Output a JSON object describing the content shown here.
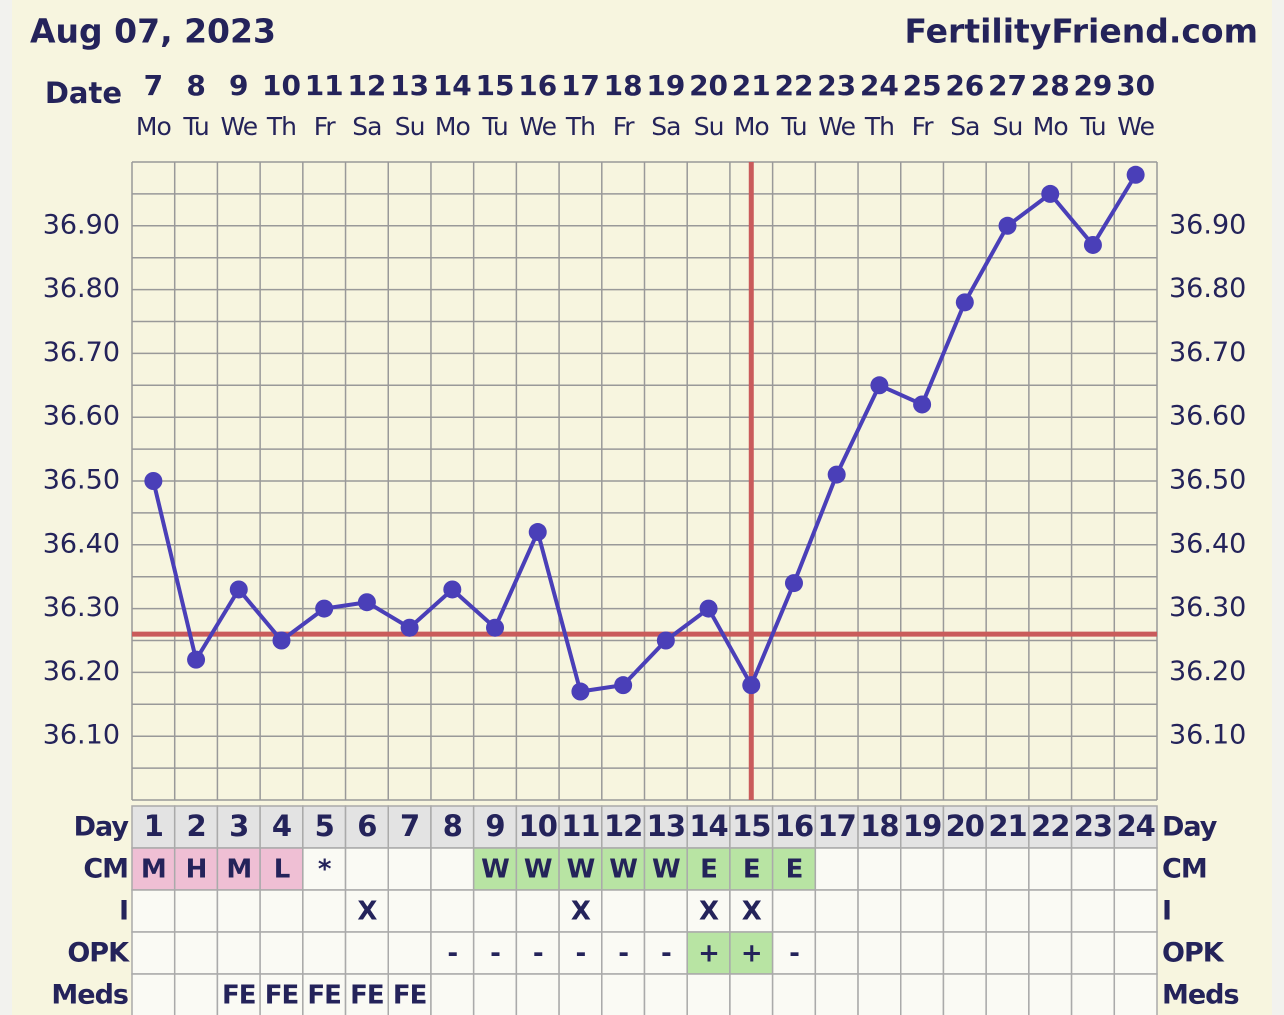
{
  "chart_data": {
    "type": "line",
    "title": "Aug 07, 2023",
    "site": "FertilityFriend.com",
    "date_label": "Date",
    "categories": [
      "7",
      "8",
      "9",
      "10",
      "11",
      "12",
      "13",
      "14",
      "15",
      "16",
      "17",
      "18",
      "19",
      "20",
      "21",
      "22",
      "23",
      "24",
      "25",
      "26",
      "27",
      "28",
      "29",
      "30"
    ],
    "weekdays": [
      "Mo",
      "Tu",
      "We",
      "Th",
      "Fr",
      "Sa",
      "Su",
      "Mo",
      "Tu",
      "We",
      "Th",
      "Fr",
      "Sa",
      "Su",
      "Mo",
      "Tu",
      "We",
      "Th",
      "Fr",
      "Sa",
      "Su",
      "Mo",
      "Tu",
      "We"
    ],
    "values": [
      36.5,
      36.22,
      36.33,
      36.25,
      36.3,
      36.31,
      36.27,
      36.33,
      36.27,
      36.42,
      36.17,
      36.18,
      36.25,
      36.3,
      36.18,
      36.34,
      36.51,
      36.65,
      36.62,
      36.78,
      36.9,
      36.95,
      36.87,
      36.98
    ],
    "color": "#4a3fb8",
    "coverline": 36.26,
    "ovulation_day": 15,
    "marker_color": "#c95b5b",
    "ylim": [
      36.0,
      37.0
    ],
    "yticks": [
      {
        "value": 36.1,
        "label": "36.10"
      },
      {
        "value": 36.2,
        "label": "36.20"
      },
      {
        "value": 36.3,
        "label": "36.30"
      },
      {
        "value": 36.4,
        "label": "36.40"
      },
      {
        "value": 36.5,
        "label": "36.50"
      },
      {
        "value": 36.6,
        "label": "36.60"
      },
      {
        "value": 36.7,
        "label": "36.70"
      },
      {
        "value": 36.8,
        "label": "36.80"
      },
      {
        "value": 36.9,
        "label": "36.90"
      }
    ],
    "grid": true
  },
  "table": {
    "rows": [
      {
        "label": "Day",
        "cells": [
          1,
          2,
          3,
          4,
          5,
          6,
          7,
          8,
          9,
          10,
          11,
          12,
          13,
          14,
          15,
          16,
          17,
          18,
          19,
          20,
          21,
          22,
          23,
          24
        ]
      },
      {
        "label": "CM",
        "cells": [
          "M",
          "H",
          "M",
          "L",
          "*",
          null,
          null,
          null,
          "W",
          "W",
          "W",
          "W",
          "W",
          "E",
          "E",
          "E",
          null,
          null,
          null,
          null,
          null,
          null,
          null,
          null
        ],
        "fills": [
          "#efbfd4",
          "#efbfd4",
          "#efbfd4",
          "#efbfd4",
          null,
          null,
          null,
          null,
          "#b8e4a3",
          "#b8e4a3",
          "#b8e4a3",
          "#b8e4a3",
          "#b8e4a3",
          "#b8e4a3",
          "#b8e4a3",
          "#b8e4a3",
          null,
          null,
          null,
          null,
          null,
          null,
          null,
          null
        ]
      },
      {
        "label": "I",
        "cells": [
          null,
          null,
          null,
          null,
          null,
          "X",
          null,
          null,
          null,
          null,
          "X",
          null,
          null,
          "X",
          "X",
          null,
          null,
          null,
          null,
          null,
          null,
          null,
          null,
          null
        ]
      },
      {
        "label": "OPK",
        "cells": [
          null,
          null,
          null,
          null,
          null,
          null,
          null,
          "-",
          "-",
          "-",
          "-",
          "-",
          "-",
          "+",
          "+",
          "-",
          null,
          null,
          null,
          null,
          null,
          null,
          null,
          null
        ],
        "fills": [
          null,
          null,
          null,
          null,
          null,
          null,
          null,
          null,
          null,
          null,
          null,
          null,
          null,
          "#b8e4a3",
          "#b8e4a3",
          null,
          null,
          null,
          null,
          null,
          null,
          null,
          null,
          null
        ]
      },
      {
        "label": "Meds",
        "cells": [
          null,
          null,
          "FE",
          "FE",
          "FE",
          "FE",
          "FE",
          null,
          null,
          null,
          null,
          null,
          null,
          null,
          null,
          null,
          null,
          null,
          null,
          null,
          null,
          null,
          null,
          null
        ]
      }
    ]
  }
}
